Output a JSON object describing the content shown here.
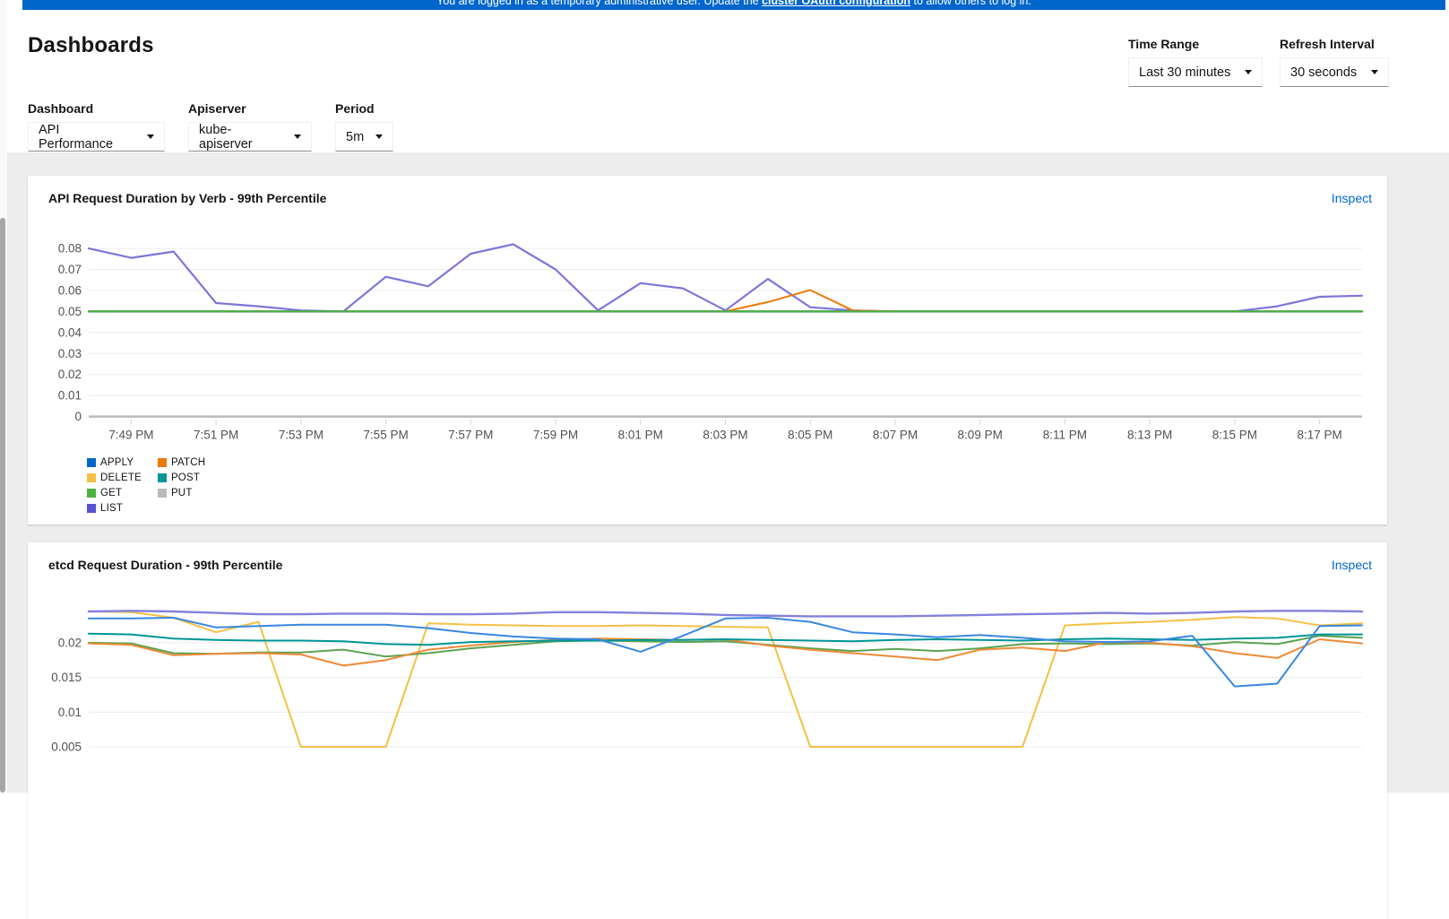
{
  "banner": {
    "pre": "You are logged in as a temporary administrative user. Update the ",
    "link": "cluster OAuth configuration",
    "post": " to allow others to log in."
  },
  "page_title": "Dashboards",
  "filters": {
    "time_range": {
      "label": "Time Range",
      "value": "Last 30 minutes"
    },
    "refresh_interval": {
      "label": "Refresh Interval",
      "value": "30 seconds"
    },
    "dashboard": {
      "label": "Dashboard",
      "value": "API Performance"
    },
    "apiserver": {
      "label": "Apiserver",
      "value": "kube-apiserver"
    },
    "period": {
      "label": "Period",
      "value": "5m"
    }
  },
  "cards": [
    {
      "title": "API Request Duration by Verb - 99th Percentile",
      "action": "Inspect",
      "chart_data": {
        "type": "line",
        "title": "API Request Duration by Verb - 99th Percentile",
        "x_range": [
          "7:48 PM",
          "8:18 PM"
        ],
        "x_ticks": [
          "7:49 PM",
          "7:51 PM",
          "7:53 PM",
          "7:55 PM",
          "7:57 PM",
          "7:59 PM",
          "8:01 PM",
          "8:03 PM",
          "8:05 PM",
          "8:07 PM",
          "8:09 PM",
          "8:11 PM",
          "8:13 PM",
          "8:15 PM",
          "8:17 PM"
        ],
        "y_ticks": [
          {
            "v": 0.08,
            "label": "0.08"
          },
          {
            "v": 0.07,
            "label": "0.07"
          },
          {
            "v": 0.06,
            "label": "0.06"
          },
          {
            "v": 0.05,
            "label": "0.05"
          },
          {
            "v": 0.04,
            "label": "0.04"
          },
          {
            "v": 0.03,
            "label": "0.03"
          },
          {
            "v": 0.02,
            "label": "0.02"
          },
          {
            "v": 0.01,
            "label": "0.01"
          },
          {
            "v": 0,
            "label": "0"
          }
        ],
        "ylim": [
          0,
          0.089
        ],
        "grid": true,
        "legend_position": "bottom-left",
        "series": [
          {
            "name": "APPLY",
            "color": "#0066cc",
            "z": 3,
            "values": [
              0.05,
              0.05,
              0.05,
              0.05,
              0.05,
              0.05,
              0.05,
              0.05,
              0.05,
              0.05,
              0.05,
              0.05,
              0.05,
              0.05,
              0.05,
              0.05,
              0.05,
              0.05,
              0.05,
              0.05,
              0.05,
              0.05,
              0.05,
              0.05,
              0.05,
              0.05,
              0.05,
              0.05,
              0.05,
              0.05,
              0.05
            ]
          },
          {
            "name": "DELETE",
            "color": "#f4c145",
            "z": 2,
            "values": [
              0.05,
              0.05,
              0.05,
              0.05,
              0.05,
              0.05,
              0.05,
              0.05,
              0.05,
              0.05,
              0.05,
              0.05,
              0.05,
              0.05,
              0.05,
              0.05,
              0.05,
              0.05,
              0.05,
              0.05,
              0.05,
              0.05,
              0.05,
              0.05,
              0.05,
              0.05,
              0.05,
              0.05,
              0.05,
              0.05,
              0.05
            ]
          },
          {
            "name": "GET",
            "color": "#4cb140",
            "z": 7,
            "values": [
              0.05,
              0.05,
              0.05,
              0.05,
              0.05,
              0.05,
              0.05,
              0.05,
              0.05,
              0.05,
              0.05,
              0.05,
              0.05,
              0.05,
              0.05,
              0.05,
              0.05,
              0.05,
              0.05,
              0.05,
              0.05,
              0.05,
              0.05,
              0.05,
              0.05,
              0.05,
              0.05,
              0.05,
              0.05,
              0.05,
              0.05
            ]
          },
          {
            "name": "LIST",
            "color": "#7d76db",
            "swatch": "#5752d1",
            "z": 4,
            "width": 2.2,
            "values": [
              0.08,
              0.0755,
              0.0785,
              0.054,
              0.0525,
              0.0505,
              0.05,
              0.0665,
              0.062,
              0.0775,
              0.082,
              0.07,
              0.0505,
              0.0635,
              0.061,
              0.0505,
              0.0655,
              0.052,
              0.0505,
              0.05,
              0.05,
              0.05,
              0.05,
              0.05,
              0.05,
              0.05,
              0.05,
              0.05,
              0.0525,
              0.057,
              0.0575
            ]
          },
          {
            "name": "PATCH",
            "color": "#ec7a08",
            "z": 5,
            "values": [
              0.05,
              0.05,
              0.05,
              0.05,
              0.05,
              0.05,
              0.05,
              0.05,
              0.05,
              0.05,
              0.05,
              0.05,
              0.05,
              0.05,
              0.05,
              0.05,
              0.0545,
              0.0602,
              0.0505,
              0.05,
              0.05,
              0.05,
              0.05,
              0.05,
              0.05,
              0.05,
              0.05,
              0.05,
              0.05,
              0.05,
              0.05
            ]
          },
          {
            "name": "POST",
            "color": "#009596",
            "z": 6,
            "values": [
              0.05,
              0.05,
              0.05,
              0.05,
              0.05,
              0.05,
              0.05,
              0.05,
              0.05,
              0.05,
              0.05,
              0.05,
              0.05,
              0.05,
              0.05,
              0.05,
              0.05,
              0.05,
              0.05,
              0.05,
              0.05,
              0.05,
              0.05,
              0.05,
              0.05,
              0.05,
              0.05,
              0.05,
              0.05,
              0.05,
              0.05
            ]
          },
          {
            "name": "PUT",
            "color": "#b8bbbe",
            "z": 1,
            "width": 2.5,
            "values": [
              0.05,
              0.05,
              0.05,
              0.05,
              0.05,
              0.05,
              0.05,
              0.05,
              0.05,
              0.05,
              0.05,
              0.05,
              0.05,
              0.05,
              0.05,
              0.05,
              0.05,
              0.05,
              0.05,
              0.05,
              0.05,
              0.05,
              0.05,
              0.05,
              0.05,
              0.05,
              0.05,
              0.05,
              0.05,
              0.05,
              0.05
            ]
          }
        ]
      }
    },
    {
      "title": "etcd Request Duration - 99th Percentile",
      "action": "Inspect",
      "chart_data": {
        "type": "line",
        "title": "etcd Request Duration - 99th Percentile",
        "x_range": [
          "7:48 PM",
          "8:18 PM"
        ],
        "x_ticks": [],
        "y_ticks": [
          {
            "v": 0.02,
            "label": "0.02"
          },
          {
            "v": 0.015,
            "label": "0.015"
          },
          {
            "v": 0.01,
            "label": "0.01"
          },
          {
            "v": 0.005,
            "label": "0.005"
          }
        ],
        "ylim": [
          0.004,
          0.0267
        ],
        "grid": true,
        "legend_position": "cut-off",
        "series": [
          {
            "name": "yellow",
            "color": "#f4c145",
            "z": 1,
            "values": [
              0.0245,
              0.0244,
              0.0236,
              0.0215,
              0.023,
              0.005,
              0.005,
              0.005,
              0.0228,
              0.0226,
              0.0225,
              0.0224,
              0.0224,
              0.0225,
              0.0224,
              0.0223,
              0.0222,
              0.005,
              0.005,
              0.005,
              0.005,
              0.005,
              0.005,
              0.0225,
              0.0228,
              0.023,
              0.0233,
              0.0237,
              0.0235,
              0.0225,
              0.0228
            ]
          },
          {
            "name": "purple",
            "color": "#8481dd",
            "z": 2,
            "width": 2.4,
            "values": [
              0.0245,
              0.0246,
              0.0245,
              0.0243,
              0.0241,
              0.0241,
              0.0242,
              0.0242,
              0.0241,
              0.0241,
              0.0242,
              0.0244,
              0.0244,
              0.0243,
              0.0242,
              0.024,
              0.0239,
              0.0238,
              0.0238,
              0.0238,
              0.0239,
              0.024,
              0.0241,
              0.0242,
              0.0243,
              0.0242,
              0.0243,
              0.0245,
              0.0246,
              0.0246,
              0.0245
            ]
          },
          {
            "name": "green",
            "color": "#5ba352",
            "z": 3,
            "values": [
              0.02,
              0.0199,
              0.0185,
              0.0184,
              0.0186,
              0.0186,
              0.019,
              0.018,
              0.0185,
              0.0192,
              0.0197,
              0.0202,
              0.0203,
              0.0202,
              0.0201,
              0.0202,
              0.0197,
              0.0192,
              0.0188,
              0.0191,
              0.0188,
              0.0192,
              0.0198,
              0.0199,
              0.0198,
              0.0199,
              0.0196,
              0.0201,
              0.0198,
              0.021,
              0.0207
            ]
          },
          {
            "name": "orange",
            "color": "#ee8a35",
            "z": 4,
            "values": [
              0.0199,
              0.0197,
              0.0182,
              0.0184,
              0.0185,
              0.0183,
              0.0167,
              0.0175,
              0.019,
              0.0196,
              0.0201,
              0.0204,
              0.0206,
              0.0205,
              0.0204,
              0.0205,
              0.0196,
              0.019,
              0.0185,
              0.018,
              0.0175,
              0.019,
              0.0193,
              0.0188,
              0.0201,
              0.02,
              0.0195,
              0.0185,
              0.0178,
              0.0205,
              0.0199
            ]
          },
          {
            "name": "teal",
            "color": "#009596",
            "z": 5,
            "values": [
              0.0213,
              0.0212,
              0.0206,
              0.0204,
              0.0203,
              0.0203,
              0.0202,
              0.0198,
              0.0197,
              0.0201,
              0.0202,
              0.0203,
              0.0203,
              0.0204,
              0.0204,
              0.0205,
              0.0204,
              0.0203,
              0.0202,
              0.0204,
              0.0205,
              0.0204,
              0.0203,
              0.0205,
              0.0206,
              0.0205,
              0.0204,
              0.0206,
              0.0207,
              0.0212,
              0.0212
            ]
          },
          {
            "name": "blue",
            "color": "#3a87e0",
            "z": 6,
            "values": [
              0.0235,
              0.0235,
              0.0236,
              0.0222,
              0.0224,
              0.0226,
              0.0226,
              0.0226,
              0.0221,
              0.0214,
              0.0209,
              0.0206,
              0.0205,
              0.0187,
              0.021,
              0.0235,
              0.0236,
              0.023,
              0.0215,
              0.0212,
              0.0208,
              0.0211,
              0.0207,
              0.0202,
              0.0201,
              0.0202,
              0.021,
              0.0137,
              0.0141,
              0.0224,
              0.0225
            ]
          }
        ]
      }
    }
  ]
}
